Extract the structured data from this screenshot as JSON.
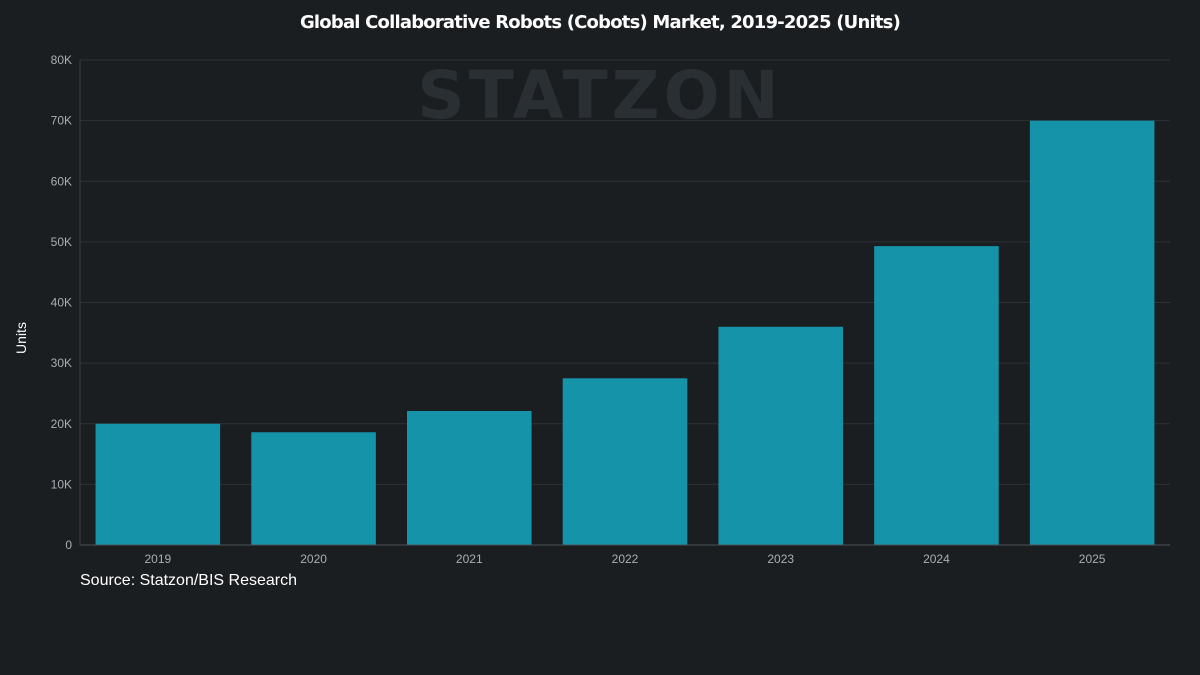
{
  "chart_data": {
    "type": "bar",
    "title": "Global Collaborative Robots (Cobots) Market, 2019-2025 (Units)",
    "xlabel": "",
    "ylabel": "Units",
    "categories": [
      "2019",
      "2020",
      "2021",
      "2022",
      "2023",
      "2024",
      "2025"
    ],
    "values": [
      20000,
      18600,
      22100,
      27500,
      36000,
      49300,
      70000
    ],
    "ylim": [
      0,
      80000
    ],
    "yticks": [
      0,
      10000,
      20000,
      30000,
      40000,
      50000,
      60000,
      70000,
      80000
    ],
    "ytick_labels": [
      "0",
      "10K",
      "20K",
      "30K",
      "40K",
      "50K",
      "60K",
      "70K",
      "80K"
    ],
    "grid": true,
    "legend": "none",
    "bar_color": "#1593a8"
  },
  "watermark": "STATZON",
  "source": "Source: Statzon/BIS Research",
  "colors": {
    "background": "#1b1e21",
    "grid": "#2c3136",
    "tick_text": "#a9aeb3",
    "title_text": "#ffffff"
  }
}
